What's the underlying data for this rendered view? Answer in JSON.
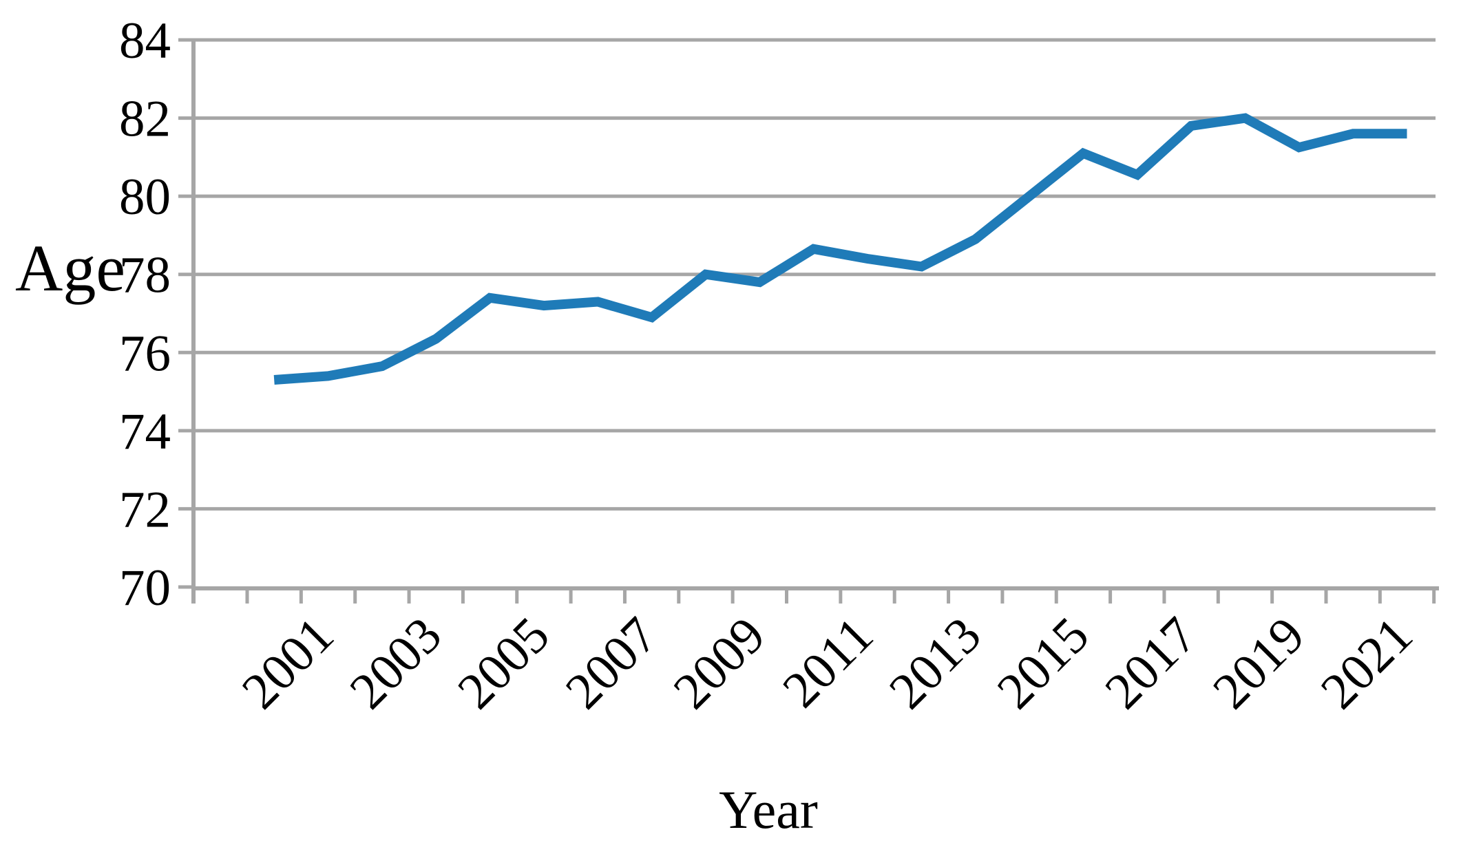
{
  "chart_data": {
    "type": "line",
    "title": "",
    "xlabel": "Year",
    "ylabel": "Age",
    "x": [
      2000,
      2001,
      2002,
      2003,
      2004,
      2005,
      2006,
      2007,
      2008,
      2009,
      2010,
      2011,
      2012,
      2013,
      2014,
      2015,
      2016,
      2017,
      2018,
      2019,
      2020,
      2021
    ],
    "values": [
      75.3,
      75.4,
      75.65,
      76.35,
      77.4,
      77.2,
      77.3,
      76.9,
      78.0,
      77.8,
      78.65,
      78.4,
      78.2,
      78.9,
      80.0,
      81.1,
      80.55,
      81.8,
      82.0,
      81.25,
      81.6,
      81.6
    ],
    "series": [
      {
        "name": "Age",
        "values": [
          75.3,
          75.4,
          75.65,
          76.35,
          77.4,
          77.2,
          77.3,
          76.9,
          78.0,
          77.8,
          78.65,
          78.4,
          78.2,
          78.9,
          80.0,
          81.1,
          80.55,
          81.8,
          82.0,
          81.25,
          81.6,
          81.6
        ]
      }
    ],
    "ylim": [
      70,
      84
    ],
    "yticks": [
      84,
      82,
      80,
      78,
      76,
      74,
      72,
      70
    ],
    "xtick_labels": [
      "2001",
      "2003",
      "2005",
      "2007",
      "2009",
      "2011",
      "2013",
      "2015",
      "2017",
      "2019",
      "2021"
    ],
    "xtick_label_every": 2,
    "xtick_label_rotation_deg": 45,
    "grid": "horizontal",
    "legend": "none",
    "line_color": "#1F7BB8",
    "grid_color": "#A6A6A6",
    "axis_color": "#A6A6A6",
    "text_color": "#000000"
  }
}
